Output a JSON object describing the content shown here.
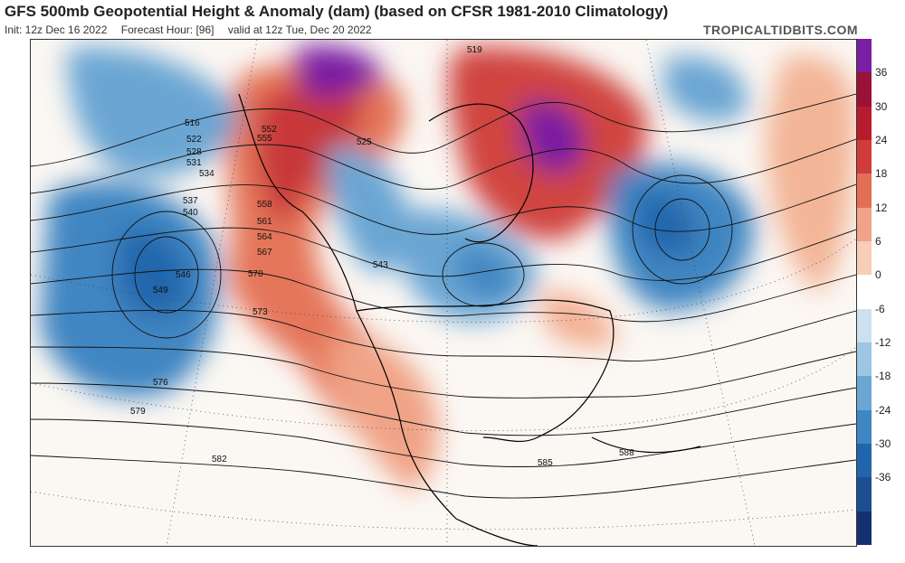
{
  "header": {
    "title": "GFS 500mb Geopotential Height & Anomaly (dam) (based on CFSR 1981-2010 Climatology)",
    "init": "Init: 12z Dec 16 2022",
    "forecast_hour": "Forecast Hour: [96]",
    "valid": "valid at 12z Tue, Dec 20 2022",
    "brand": "TROPICALTIDBITS.COM"
  },
  "colorbar": {
    "ticks": [
      "36",
      "30",
      "24",
      "18",
      "12",
      "6",
      "0",
      "-6",
      "-12",
      "-18",
      "-24",
      "-30",
      "-36"
    ],
    "bins": [
      "#7b1fa2",
      "#9b1238",
      "#b71c2c",
      "#cf3c3a",
      "#e26f55",
      "#f0a386",
      "#f8cdb9",
      "#ffffff",
      "#cce1ef",
      "#9cc6e2",
      "#6aa6d3",
      "#3f86c2",
      "#2166ac",
      "#1b4f91",
      "#15306e"
    ]
  },
  "height_labels": [
    "516",
    "522",
    "528",
    "531",
    "534",
    "537",
    "540",
    "546",
    "549",
    "552",
    "555",
    "558",
    "561",
    "564",
    "567",
    "570",
    "573",
    "576",
    "579",
    "582",
    "585",
    "588",
    "525",
    "543",
    "519"
  ],
  "colors": {
    "positive_anomaly": "#cf3c3a",
    "negative_anomaly": "#3f86c2",
    "strong_positive": "#7b1fa2",
    "land_outline": "#000000"
  }
}
